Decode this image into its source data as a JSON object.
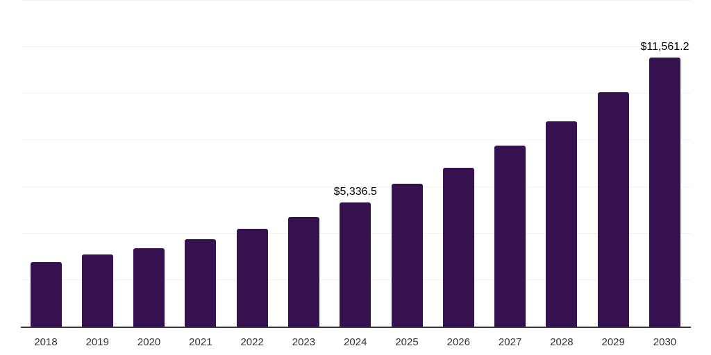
{
  "chart_data": {
    "type": "bar",
    "title": "",
    "xlabel": "",
    "ylabel": "",
    "categories": [
      "2018",
      "2019",
      "2020",
      "2021",
      "2022",
      "2023",
      "2024",
      "2025",
      "2026",
      "2027",
      "2028",
      "2029",
      "2030"
    ],
    "values": [
      2785,
      3110,
      3375,
      3760,
      4205,
      4710,
      5336.5,
      6140,
      6825,
      7775,
      8815,
      10065,
      11561.2
    ],
    "labeled_points": [
      {
        "index": 6,
        "category": "2024",
        "text": "$5,336.5"
      },
      {
        "index": 12,
        "category": "2030",
        "text": "$11,561.2"
      }
    ],
    "ylim": [
      0,
      14000
    ],
    "gridline_step": 2000,
    "grid": "horizontal",
    "y_axis_labels": "hidden",
    "legend": "none",
    "bar_corner_radius_px": 3
  },
  "styles": {
    "bar_color": "#36114F",
    "grid_color": "#F2F2F2",
    "axis_color": "#383838",
    "data_label_color": "#000000",
    "tick_color": "#333333",
    "background": "#FFFFFF"
  }
}
